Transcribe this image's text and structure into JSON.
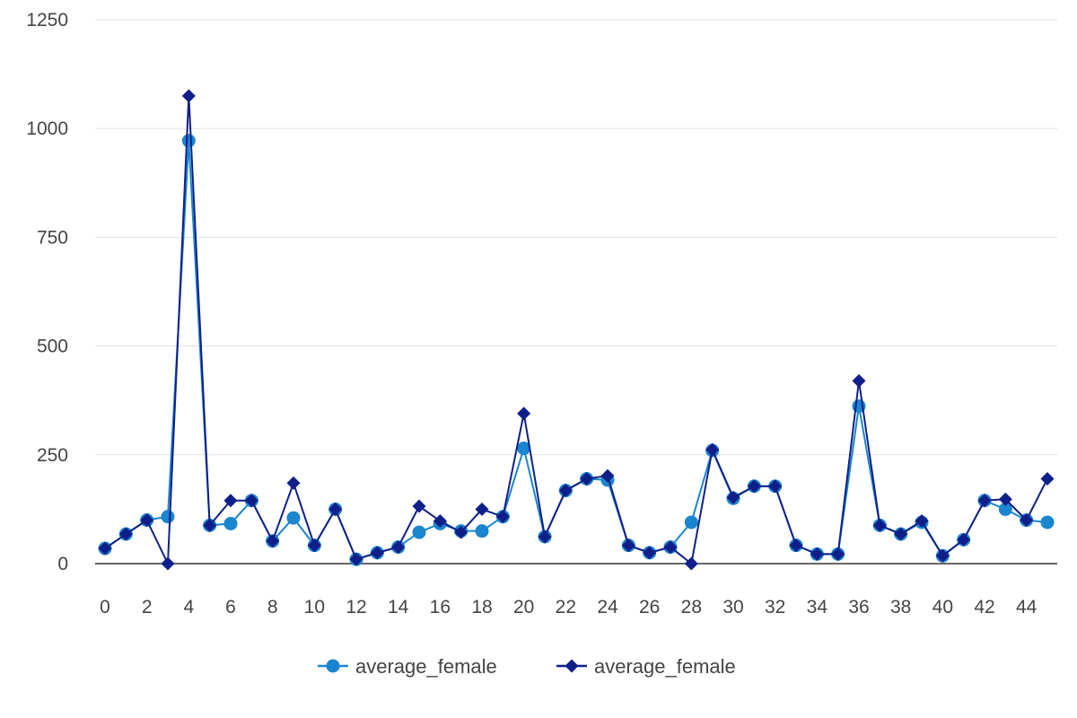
{
  "chart_data": {
    "type": "line",
    "x": [
      0,
      1,
      2,
      3,
      4,
      5,
      6,
      7,
      8,
      9,
      10,
      11,
      12,
      13,
      14,
      15,
      16,
      17,
      18,
      19,
      20,
      21,
      22,
      23,
      24,
      25,
      26,
      27,
      28,
      29,
      30,
      31,
      32,
      33,
      34,
      35,
      36,
      37,
      38,
      39,
      40,
      41,
      42,
      43,
      44,
      45
    ],
    "xticks": [
      0,
      2,
      4,
      6,
      8,
      10,
      12,
      14,
      16,
      18,
      20,
      22,
      24,
      26,
      28,
      30,
      32,
      34,
      36,
      38,
      40,
      42,
      44
    ],
    "yticks": [
      0,
      250,
      500,
      750,
      1000,
      1250
    ],
    "ylim": [
      0,
      1250
    ],
    "xlim": [
      0,
      45
    ],
    "grid": true,
    "legend_position": "bottom-center",
    "series": [
      {
        "name": "average_female",
        "color": "#1a86d0",
        "marker": "circle",
        "values": [
          35,
          68,
          100,
          108,
          972,
          88,
          92,
          145,
          52,
          105,
          42,
          125,
          10,
          25,
          38,
          72,
          92,
          75,
          75,
          108,
          265,
          62,
          168,
          195,
          192,
          42,
          25,
          38,
          95,
          260,
          150,
          178,
          178,
          42,
          22,
          22,
          362,
          88,
          68,
          95,
          18,
          55,
          145,
          125,
          100,
          95
        ]
      },
      {
        "name": "average_female",
        "color": "#0f1f8a",
        "marker": "diamond",
        "values": [
          35,
          68,
          100,
          0,
          1075,
          88,
          145,
          145,
          52,
          185,
          42,
          125,
          10,
          25,
          38,
          132,
          98,
          72,
          125,
          108,
          345,
          62,
          168,
          195,
          202,
          42,
          25,
          38,
          0,
          262,
          152,
          178,
          178,
          42,
          22,
          22,
          420,
          88,
          68,
          98,
          18,
          55,
          145,
          148,
          100,
          195
        ]
      }
    ]
  }
}
